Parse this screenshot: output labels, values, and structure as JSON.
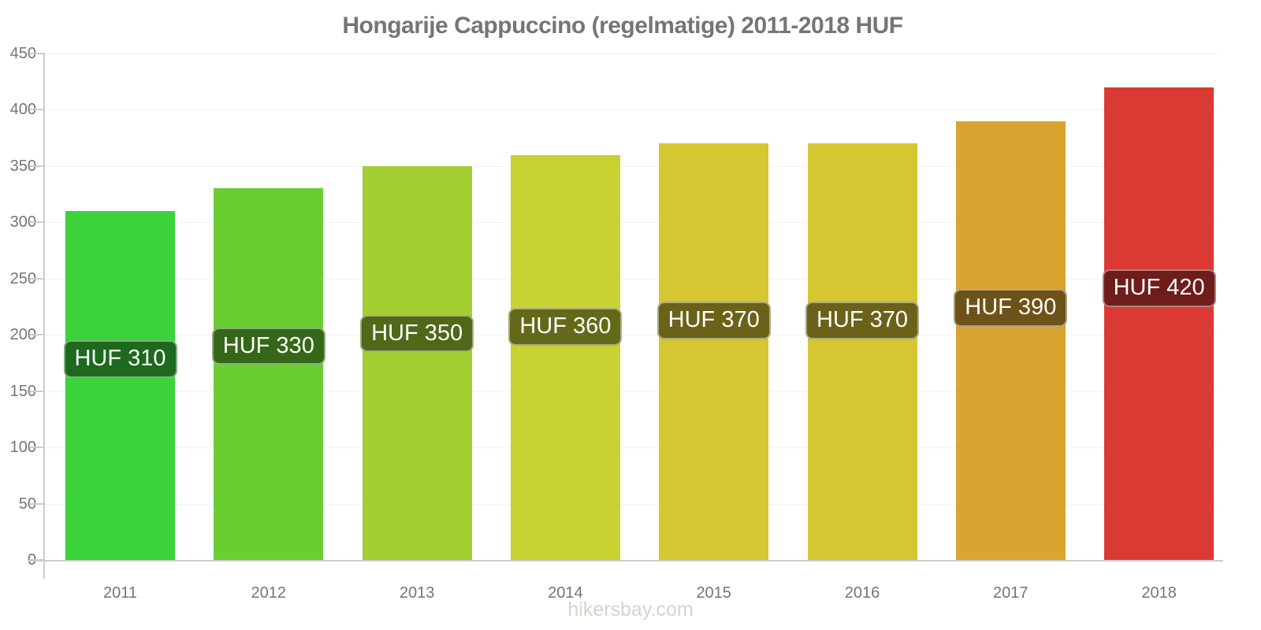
{
  "page": {
    "watermark": "hikersbay.com"
  },
  "colors": {
    "title_text": "#757575",
    "axis_line": "#cccccc",
    "tick_text": "#757575",
    "gridline": "#f2f2f2",
    "bar_label_text": "#ffffff",
    "watermark_text": "#d3d5cc"
  },
  "chart_data": {
    "type": "bar",
    "title": "Hongarije Cappuccino (regelmatige) 2011-2018 HUF",
    "currency": "HUF",
    "categories": [
      "2011",
      "2012",
      "2013",
      "2014",
      "2015",
      "2016",
      "2017",
      "2018"
    ],
    "values": [
      310,
      330,
      350,
      360,
      370,
      370,
      390,
      420
    ],
    "bar_labels": [
      "HUF 310",
      "HUF 330",
      "HUF 350",
      "HUF 360",
      "HUF 370",
      "HUF 370",
      "HUF 390",
      "HUF 420"
    ],
    "bar_colors": [
      "#3bd23b",
      "#69ce32",
      "#a2ce32",
      "#c8d232",
      "#d4c732",
      "#d4c732",
      "#daa431",
      "#da3a33"
    ],
    "bar_label_backgrounds": [
      "#1d691d",
      "#356719",
      "#516719",
      "#646919",
      "#6a6219",
      "#6a6219",
      "#6d5219",
      "#6e1d1a"
    ],
    "xlabel": "",
    "ylabel": "",
    "ylim": [
      0,
      450
    ],
    "yticks": [
      0,
      50,
      100,
      150,
      200,
      250,
      300,
      350,
      400,
      450
    ],
    "grid": "faint horizontal gridlines at each y tick",
    "legend": "none"
  }
}
